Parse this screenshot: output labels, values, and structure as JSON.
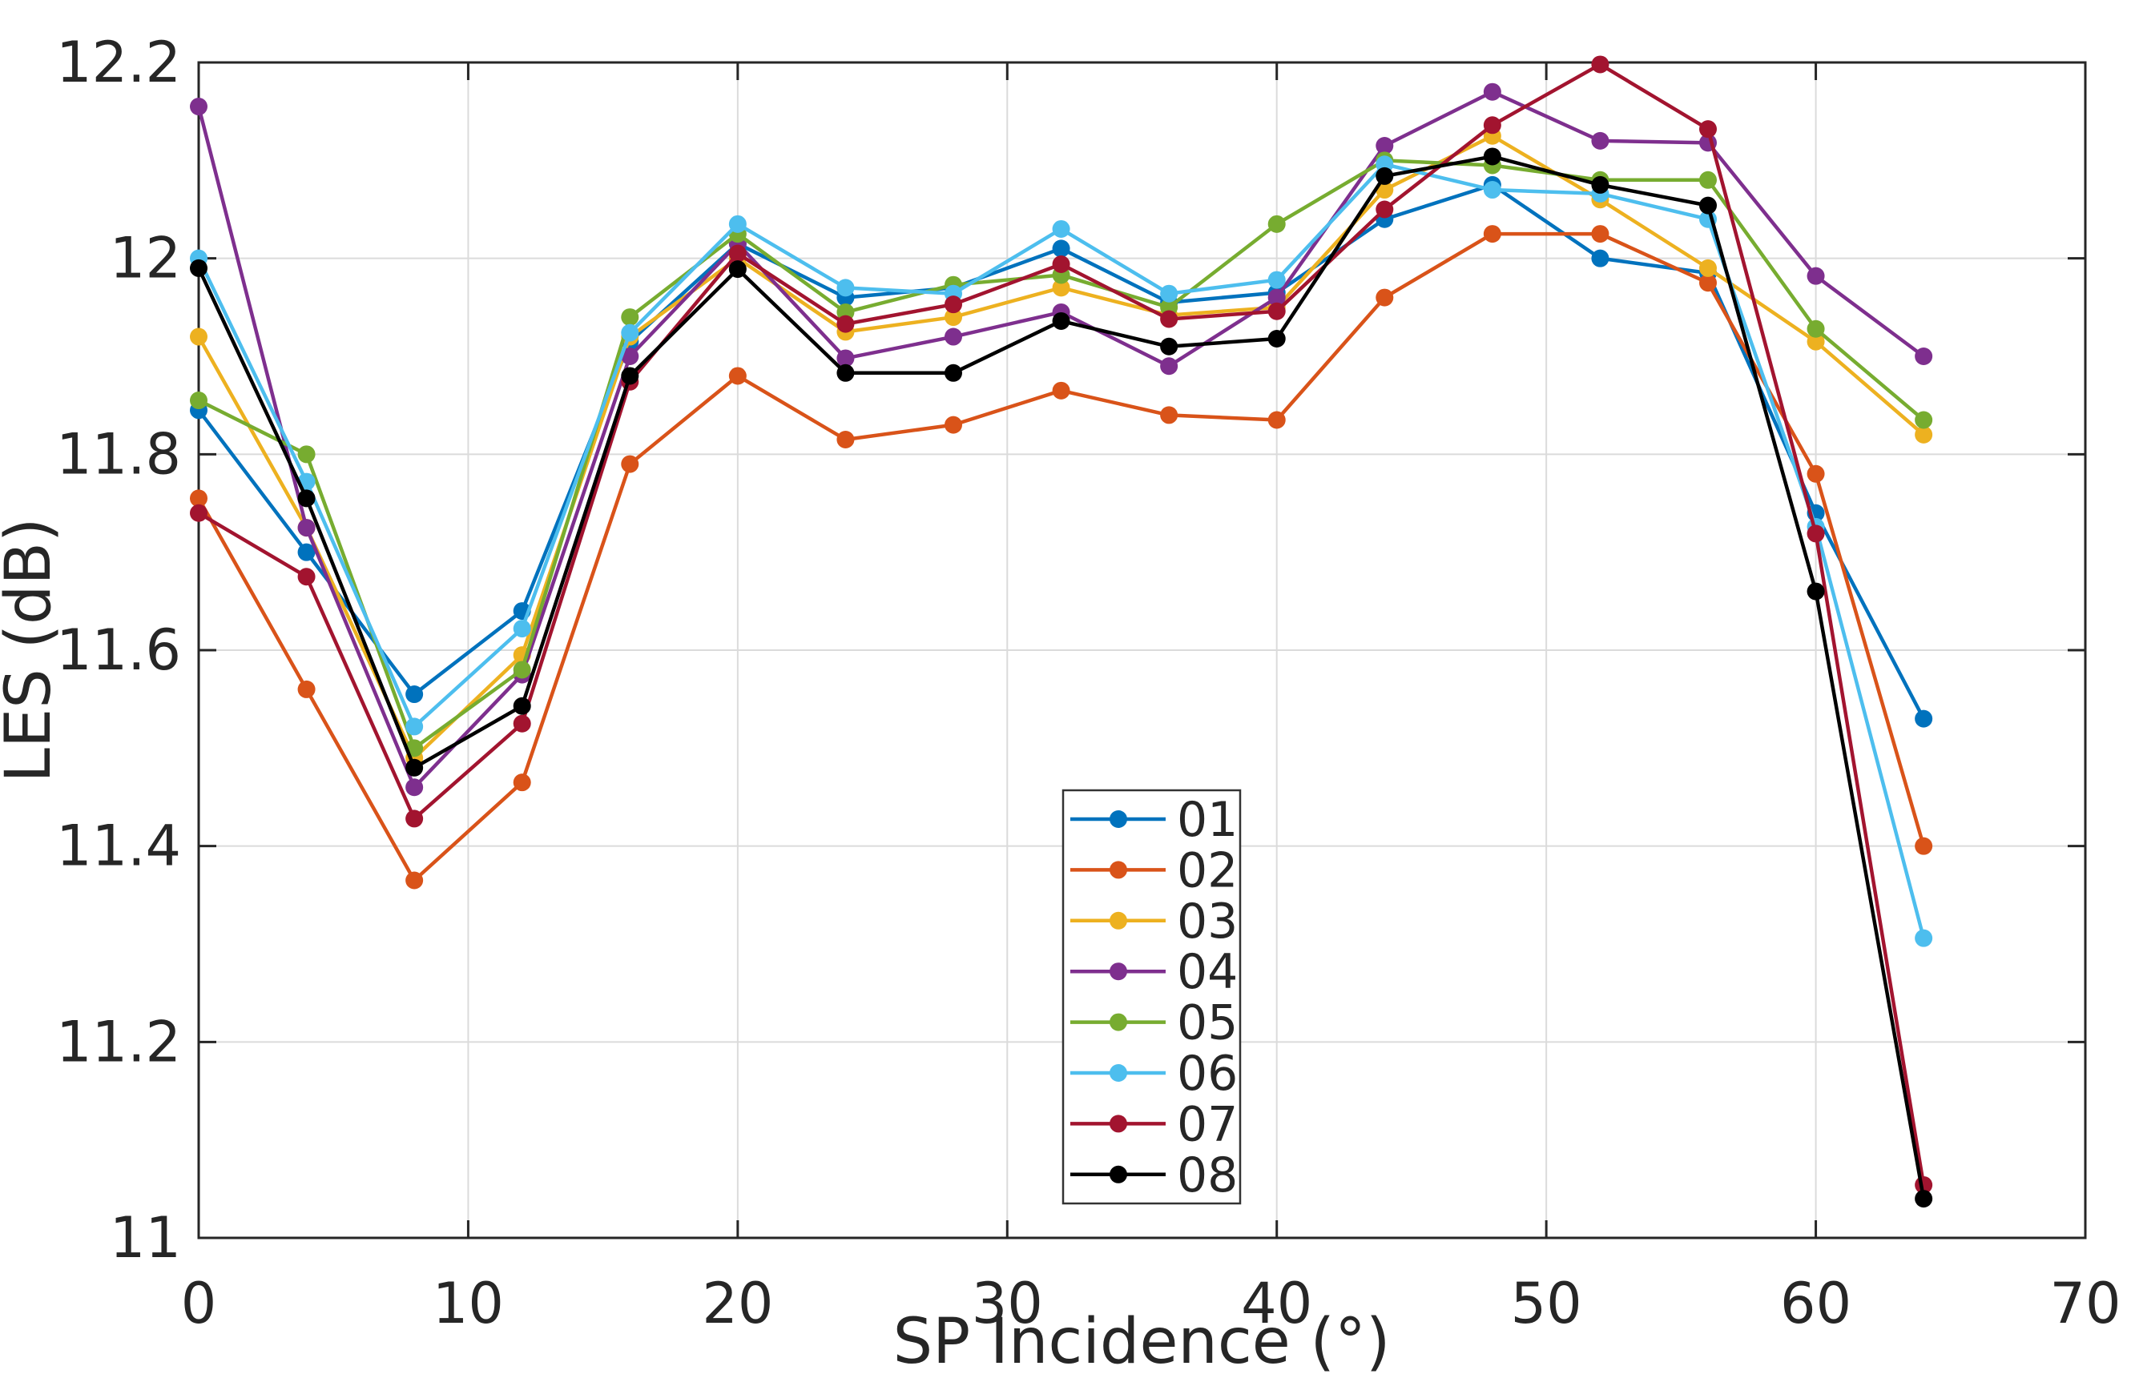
{
  "chart_data": {
    "type": "line",
    "title": "",
    "xlabel": "SP Incidence (°)",
    "ylabel": "LES (dB)",
    "xlim": [
      0,
      70
    ],
    "ylim": [
      11,
      12.2
    ],
    "xticks": [
      0,
      10,
      20,
      30,
      40,
      50,
      60,
      70
    ],
    "xtick_labels": [
      "0",
      "10",
      "20",
      "30",
      "40",
      "50",
      "60",
      "70"
    ],
    "yticks": [
      11,
      11.2,
      11.4,
      11.6,
      11.8,
      12,
      12.2
    ],
    "ytick_labels": [
      "11",
      "11.2",
      "11.4",
      "11.6",
      "11.8",
      "12",
      "12.2"
    ],
    "grid": true,
    "legend_position": "inside-lower-center",
    "x": [
      0,
      4,
      8,
      12,
      16,
      20,
      24,
      28,
      32,
      36,
      40,
      44,
      48,
      52,
      56,
      60,
      64
    ],
    "series": [
      {
        "name": "01",
        "color": "#0072BD",
        "values": [
          11.845,
          11.7,
          11.555,
          11.64,
          11.915,
          12.015,
          11.96,
          11.97,
          12.01,
          11.955,
          11.965,
          12.04,
          12.075,
          12.0,
          11.985,
          11.74,
          11.53
        ]
      },
      {
        "name": "02",
        "color": "#D95319",
        "values": [
          11.755,
          11.56,
          11.365,
          11.465,
          11.79,
          11.88,
          11.815,
          11.83,
          11.865,
          11.84,
          11.835,
          11.96,
          12.025,
          12.025,
          11.975,
          11.78,
          11.4
        ]
      },
      {
        "name": "03",
        "color": "#EDB120",
        "values": [
          11.92,
          11.725,
          11.49,
          11.595,
          11.92,
          12.0,
          11.925,
          11.94,
          11.97,
          11.942,
          11.95,
          12.07,
          12.125,
          12.06,
          11.99,
          11.915,
          11.82
        ]
      },
      {
        "name": "04",
        "color": "#7E2F8E",
        "values": [
          12.155,
          11.725,
          11.46,
          11.575,
          11.9,
          12.015,
          11.898,
          11.92,
          11.945,
          11.89,
          11.96,
          12.115,
          12.17,
          12.12,
          12.118,
          11.982,
          11.9
        ]
      },
      {
        "name": "05",
        "color": "#77AC30",
        "values": [
          11.855,
          11.8,
          11.5,
          11.58,
          11.94,
          12.025,
          11.945,
          11.973,
          11.983,
          11.95,
          12.035,
          12.1,
          12.095,
          12.08,
          12.08,
          11.928,
          11.835
        ]
      },
      {
        "name": "06",
        "color": "#4DBEEE",
        "values": [
          12.0,
          11.772,
          11.522,
          11.622,
          11.924,
          12.035,
          11.97,
          11.964,
          12.03,
          11.964,
          11.978,
          12.096,
          12.07,
          12.066,
          12.04,
          11.726,
          11.306
        ]
      },
      {
        "name": "07",
        "color": "#A2142F",
        "values": [
          11.74,
          11.675,
          11.428,
          11.525,
          11.874,
          12.005,
          11.933,
          11.953,
          11.994,
          11.938,
          11.946,
          12.05,
          12.136,
          12.198,
          12.132,
          11.719,
          11.054
        ]
      },
      {
        "name": "08",
        "color": "#000000",
        "values": [
          11.99,
          11.755,
          11.48,
          11.543,
          11.88,
          11.989,
          11.883,
          11.883,
          11.936,
          11.91,
          11.918,
          12.084,
          12.104,
          12.075,
          12.054,
          11.66,
          11.04
        ]
      }
    ]
  },
  "style": {
    "axis_color": "#262626",
    "grid_color": "#dbdbdb",
    "background": "#ffffff",
    "legend_border_color": "#333333",
    "legend_background": "#ffffff"
  }
}
